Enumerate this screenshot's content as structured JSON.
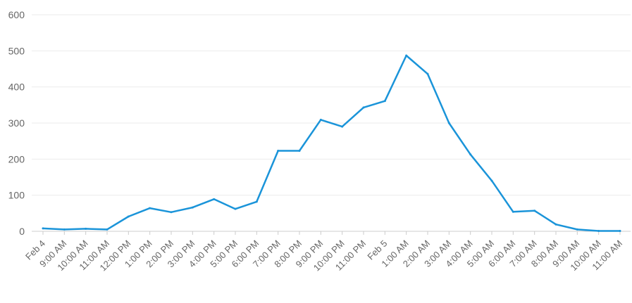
{
  "chart_data": {
    "type": "line",
    "title": "",
    "xlabel": "",
    "ylabel": "",
    "ylim": [
      0,
      600
    ],
    "yticks": [
      0,
      100,
      200,
      300,
      400,
      500,
      600
    ],
    "grid": true,
    "legend": "none",
    "categories": [
      "Feb 4",
      "9:00 AM",
      "10:00 AM",
      "11:00 AM",
      "12:00 PM",
      "1:00 PM",
      "2:00 PM",
      "3:00 PM",
      "4:00 PM",
      "5:00 PM",
      "6:00 PM",
      "7:00 PM",
      "8:00 PM",
      "9:00 PM",
      "10:00 PM",
      "11:00 PM",
      "Feb 5",
      "1:00 AM",
      "2:00 AM",
      "3:00 AM",
      "4:00 AM",
      "5:00 AM",
      "6:00 AM",
      "7:00 AM",
      "8:00 AM",
      "9:00 AM",
      "10:00 AM",
      "11:00 AM"
    ],
    "series": [
      {
        "color": "#1a94d9",
        "values": [
          8,
          5,
          7,
          5,
          41,
          64,
          53,
          66,
          89,
          62,
          82,
          223,
          223,
          309,
          290,
          343,
          361,
          487,
          436,
          300,
          213,
          140,
          54,
          57,
          19,
          5,
          1,
          1
        ]
      }
    ],
    "colors": {
      "grid": "#ebebeb",
      "axis": "#cccccc",
      "text": "#666666"
    }
  }
}
